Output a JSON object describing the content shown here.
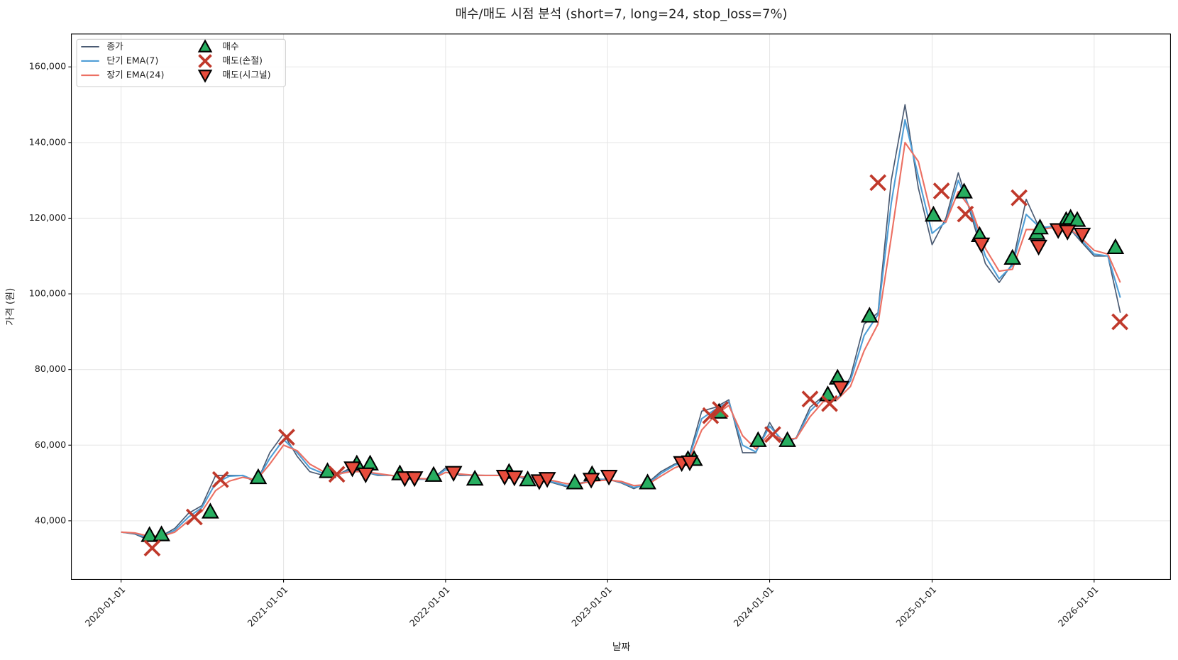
{
  "chart_data": {
    "type": "line",
    "title": "매수/매도 시점 분석 (short=7, long=24, stop_loss=7%)",
    "x_label": "날짜",
    "y_label": "가격 (원)",
    "x": [
      "2020-01-01",
      "2020-02-01",
      "2020-03-01",
      "2020-04-01",
      "2020-05-01",
      "2020-06-01",
      "2020-07-01",
      "2020-08-01",
      "2020-09-01",
      "2020-10-01",
      "2020-11-01",
      "2020-12-01",
      "2021-01-01",
      "2021-02-01",
      "2021-03-01",
      "2021-04-01",
      "2021-05-01",
      "2021-06-01",
      "2021-07-01",
      "2021-08-01",
      "2021-09-01",
      "2021-10-01",
      "2021-11-01",
      "2021-12-01",
      "2022-01-01",
      "2022-02-01",
      "2022-03-01",
      "2022-04-01",
      "2022-05-01",
      "2022-06-01",
      "2022-07-01",
      "2022-08-01",
      "2022-09-01",
      "2022-10-01",
      "2022-11-01",
      "2022-12-01",
      "2023-01-01",
      "2023-02-01",
      "2023-03-01",
      "2023-04-01",
      "2023-05-01",
      "2023-06-01",
      "2023-07-01",
      "2023-08-01",
      "2023-09-01",
      "2023-10-01",
      "2023-11-01",
      "2023-12-01",
      "2024-01-01",
      "2024-02-01",
      "2024-03-01",
      "2024-04-01",
      "2024-05-01",
      "2024-06-01",
      "2024-07-01",
      "2024-08-01",
      "2024-09-01",
      "2024-10-01",
      "2024-11-01",
      "2024-12-01",
      "2025-01-01",
      "2025-02-01",
      "2025-03-01",
      "2025-04-01",
      "2025-05-01",
      "2025-06-01",
      "2025-07-01",
      "2025-08-01",
      "2025-09-01",
      "2025-10-01",
      "2025-11-01",
      "2025-12-01",
      "2026-01-01",
      "2026-02-01",
      "2026-03-01"
    ],
    "series": [
      {
        "name": "종가",
        "color": "#4a5a72",
        "width": 1.6,
        "values": [
          37000,
          36500,
          35000,
          36000,
          38000,
          42000,
          44000,
          52000,
          52000,
          52000,
          50000,
          58000,
          63000,
          57000,
          53000,
          52000,
          52000,
          54000,
          53000,
          52000,
          52000,
          51000,
          51000,
          51000,
          54000,
          52000,
          52000,
          52000,
          52000,
          52000,
          51000,
          51000,
          50000,
          49000,
          50000,
          51000,
          51000,
          50000,
          48500,
          50000,
          53000,
          55000,
          56000,
          69000,
          70000,
          72000,
          58000,
          58000,
          66000,
          60000,
          62000,
          70000,
          73000,
          72000,
          78000,
          92000,
          95000,
          130000,
          150000,
          128000,
          113000,
          120000,
          132000,
          120000,
          108000,
          103000,
          108000,
          125000,
          117000,
          118000,
          118000,
          114000,
          110000,
          110000,
          95000
        ]
      },
      {
        "name": "단기 EMA(7)",
        "color": "#4f9ed6",
        "width": 2,
        "values": [
          37000,
          36700,
          35500,
          35800,
          37500,
          41000,
          43500,
          50000,
          51800,
          52000,
          50500,
          56500,
          61500,
          58000,
          54000,
          52500,
          52000,
          53500,
          53000,
          52200,
          52000,
          51200,
          51000,
          51000,
          53500,
          52300,
          52000,
          52000,
          52000,
          52000,
          51200,
          51000,
          50200,
          49300,
          49800,
          50800,
          51000,
          50200,
          48800,
          49700,
          52500,
          54700,
          55800,
          67000,
          69500,
          71500,
          60000,
          58200,
          65000,
          61000,
          61800,
          69000,
          72500,
          72200,
          77000,
          89000,
          94500,
          124000,
          146000,
          131000,
          116000,
          119000,
          130000,
          121000,
          110000,
          104000,
          107500,
          121000,
          117500,
          117800,
          118000,
          114500,
          110500,
          110000,
          99000
        ]
      },
      {
        "name": "장기 EMA(24)",
        "color": "#ec7063",
        "width": 2,
        "values": [
          37000,
          36800,
          36000,
          35900,
          37000,
          40000,
          42500,
          48000,
          50500,
          51500,
          50800,
          55000,
          60000,
          58500,
          55000,
          53000,
          52300,
          53000,
          53000,
          52500,
          52000,
          51500,
          51200,
          51000,
          52800,
          52400,
          52100,
          52000,
          52000,
          52000,
          51500,
          51200,
          50600,
          49800,
          49900,
          50500,
          50800,
          50400,
          49300,
          49600,
          51800,
          54000,
          55300,
          64000,
          68000,
          70500,
          62500,
          59000,
          63000,
          61500,
          61800,
          67500,
          71500,
          72000,
          75500,
          85000,
          92000,
          115000,
          140000,
          135000,
          120000,
          119000,
          127000,
          122000,
          112000,
          106000,
          106500,
          117000,
          117000,
          117500,
          117800,
          115000,
          111500,
          110500,
          103000
        ]
      }
    ],
    "signals": [
      {
        "name": "매수",
        "marker": "triangle-up",
        "color": "#27ae60",
        "x": [
          "2020-03-05",
          "2020-04-01",
          "2020-07-20",
          "2020-11-05",
          "2021-04-10",
          "2021-06-15",
          "2021-07-15",
          "2021-09-20",
          "2021-12-05",
          "2022-03-08",
          "2022-05-24",
          "2022-07-05",
          "2022-10-19",
          "2022-11-27",
          "2023-04-01",
          "2023-07-01",
          "2023-07-15",
          "2023-09-09",
          "2023-12-06",
          "2024-02-10",
          "2024-05-11",
          "2024-06-02",
          "2024-08-13",
          "2025-01-04",
          "2025-03-14",
          "2025-04-18",
          "2025-07-01",
          "2025-08-25",
          "2025-09-01",
          "2025-10-30",
          "2025-11-09",
          "2025-11-24",
          "2026-02-18"
        ],
        "values": [
          36200,
          36400,
          42400,
          51500,
          53100,
          55100,
          55100,
          52500,
          52100,
          51100,
          52900,
          50900,
          50100,
          52300,
          50100,
          56300,
          56300,
          68800,
          61300,
          61300,
          73400,
          77800,
          94200,
          120900,
          127000,
          115500,
          109500,
          116100,
          117500,
          119500,
          120100,
          119500,
          112300
        ]
      },
      {
        "name": "매도(손절)",
        "marker": "x",
        "color": "#c0392b",
        "x": [
          "2020-03-11",
          "2020-06-14",
          "2020-08-12",
          "2021-01-08",
          "2021-05-01",
          "2023-08-21",
          "2023-09-12",
          "2024-01-08",
          "2024-04-01",
          "2024-05-15",
          "2024-09-01",
          "2025-01-22",
          "2025-03-17",
          "2025-07-16",
          "2026-02-28"
        ],
        "values": [
          32800,
          41000,
          50900,
          62100,
          52300,
          67800,
          69400,
          62800,
          72200,
          71000,
          129400,
          127200,
          121100,
          125400,
          92600
        ]
      },
      {
        "name": "매도(시그널)",
        "marker": "triangle-down",
        "color": "#e74c3c",
        "x": [
          "2021-06-05",
          "2021-07-05",
          "2021-10-01",
          "2021-10-23",
          "2022-01-19",
          "2022-05-14",
          "2022-06-05",
          "2022-07-31",
          "2022-08-18",
          "2022-11-25",
          "2023-01-04",
          "2023-06-17",
          "2023-07-05",
          "2024-06-09",
          "2025-04-22",
          "2025-08-29",
          "2025-10-12",
          "2025-11-02",
          "2025-12-05"
        ],
        "values": [
          53900,
          52300,
          51300,
          51300,
          52700,
          51700,
          51500,
          50500,
          51100,
          50900,
          51700,
          55300,
          55500,
          75200,
          113100,
          112500,
          116900,
          116500,
          115700
        ]
      }
    ],
    "xlim": [
      "2019-09-11",
      "2026-06-22"
    ],
    "xticks": [
      "2020-01-01",
      "2021-01-01",
      "2022-01-01",
      "2023-01-01",
      "2024-01-01",
      "2025-01-01",
      "2026-01-01"
    ],
    "ylim": [
      24500,
      168700
    ],
    "yticks": [
      {
        "value": 40000,
        "label": "40,000"
      },
      {
        "value": 60000,
        "label": "60,000"
      },
      {
        "value": 80000,
        "label": "80,000"
      },
      {
        "value": 100000,
        "label": "100,000"
      },
      {
        "value": 120000,
        "label": "120,000"
      },
      {
        "value": 140000,
        "label": "140,000"
      },
      {
        "value": 160000,
        "label": "160,000"
      }
    ],
    "grid": true,
    "legend": "upper left"
  }
}
